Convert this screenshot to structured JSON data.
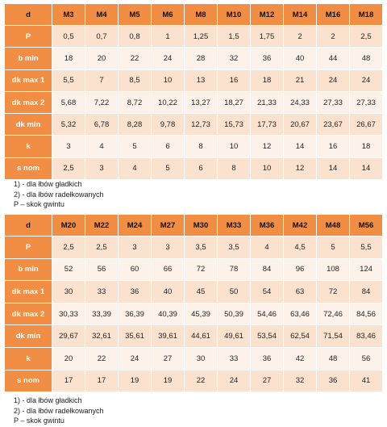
{
  "table1": {
    "header_label": "d",
    "columns": [
      "M3",
      "M4",
      "M5",
      "M6",
      "M8",
      "M10",
      "M12",
      "M14",
      "M16",
      "M18"
    ],
    "rows": [
      {
        "label": "P",
        "values": [
          "0,5",
          "0,7",
          "0,8",
          "1",
          "1,25",
          "1,5",
          "1,75",
          "2",
          "2",
          "2,5"
        ]
      },
      {
        "label": "b min",
        "values": [
          "18",
          "20",
          "22",
          "24",
          "28",
          "32",
          "36",
          "40",
          "44",
          "48"
        ]
      },
      {
        "label": "dk max 1",
        "values": [
          "5,5",
          "7",
          "8,5",
          "10",
          "13",
          "16",
          "18",
          "21",
          "24",
          "24"
        ]
      },
      {
        "label": "dk max 2",
        "values": [
          "5,68",
          "7,22",
          "8,72",
          "10,22",
          "13,27",
          "18,27",
          "21,33",
          "24,33",
          "27,33",
          "27,33"
        ]
      },
      {
        "label": "dk min",
        "values": [
          "5,32",
          "6,78",
          "8,28",
          "9,78",
          "12,73",
          "15,73",
          "17,73",
          "20,67",
          "23,67",
          "26,67"
        ]
      },
      {
        "label": "k",
        "values": [
          "3",
          "4",
          "5",
          "6",
          "8",
          "10",
          "12",
          "14",
          "16",
          "18"
        ]
      },
      {
        "label": "s nom",
        "values": [
          "2,5",
          "3",
          "4",
          "5",
          "6",
          "8",
          "10",
          "12",
          "14",
          "14"
        ]
      }
    ]
  },
  "notes1": [
    "1) - dla łbów gładkich",
    "2) - dla łbów radełkowanych",
    "P – skok gwintu"
  ],
  "table2": {
    "header_label": "d",
    "columns": [
      "M20",
      "M22",
      "M24",
      "M27",
      "M30",
      "M33",
      "M36",
      "M42",
      "M48",
      "M56"
    ],
    "rows": [
      {
        "label": "P",
        "values": [
          "2,5",
          "2,5",
          "3",
          "3",
          "3,5",
          "3,5",
          "4",
          "4,5",
          "5",
          "5,5"
        ]
      },
      {
        "label": "b min",
        "values": [
          "52",
          "56",
          "60",
          "66",
          "72",
          "78",
          "84",
          "96",
          "108",
          "124"
        ]
      },
      {
        "label": "dk max 1",
        "values": [
          "30",
          "33",
          "36",
          "40",
          "45",
          "50",
          "54",
          "63",
          "72",
          "84"
        ]
      },
      {
        "label": "dk max 2",
        "values": [
          "30,33",
          "33,39",
          "36,39",
          "40,39",
          "45,39",
          "50,39",
          "54,46",
          "63,46",
          "72,46",
          "84,56"
        ]
      },
      {
        "label": "dk min",
        "values": [
          "29,67",
          "32,61",
          "35,61",
          "39,61",
          "44,61",
          "49,61",
          "53,54",
          "62,54",
          "71,54",
          "83,46"
        ]
      },
      {
        "label": "k",
        "values": [
          "20",
          "22",
          "24",
          "27",
          "30",
          "33",
          "36",
          "42",
          "48",
          "56"
        ]
      },
      {
        "label": "s nom",
        "values": [
          "17",
          "17",
          "19",
          "19",
          "22",
          "24",
          "27",
          "32",
          "36",
          "41"
        ]
      }
    ]
  },
  "notes2": [
    "1) - dla łbów gładkich",
    "2) - dla łbów radełkowanych",
    "P – skok gwintu"
  ]
}
